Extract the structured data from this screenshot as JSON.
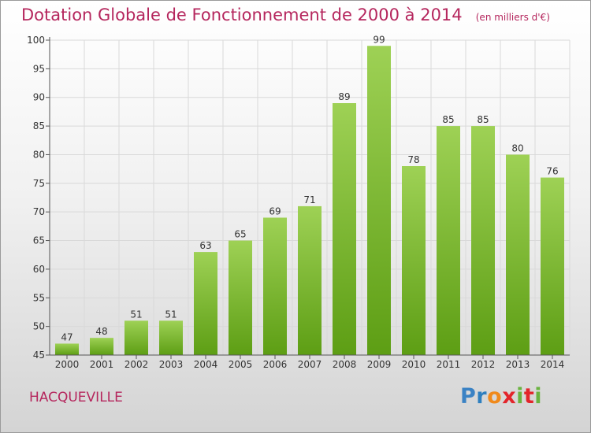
{
  "title": "Dotation Globale de Fonctionnement de 2000 à 2014",
  "subtitle": "(en milliers d'€)",
  "commune": "HACQUEVILLE",
  "logo": {
    "letters": [
      "P",
      "r",
      "o",
      "x",
      "i",
      "t",
      "i"
    ],
    "colors": [
      "#3a82c4",
      "#2e7fbf",
      "#f08a1c",
      "#e3252b",
      "#6ab33f",
      "#e3252b",
      "#6ab33f"
    ]
  },
  "colors": {
    "title": "#b5265d",
    "bar_top": "#9ed155",
    "bar_bottom": "#5d9e14",
    "grid": "#d9d9d9"
  },
  "chart_data": {
    "type": "bar",
    "title": "Dotation Globale de Fonctionnement de 2000 à 2014",
    "subtitle": "(en milliers d'€)",
    "categories": [
      "2000",
      "2001",
      "2002",
      "2003",
      "2004",
      "2005",
      "2006",
      "2007",
      "2008",
      "2009",
      "2010",
      "2011",
      "2012",
      "2013",
      "2014"
    ],
    "values": [
      47,
      48,
      51,
      51,
      63,
      65,
      69,
      71,
      89,
      99,
      78,
      85,
      85,
      80,
      76
    ],
    "ylim": [
      45,
      100
    ],
    "yticks": [
      45,
      50,
      55,
      60,
      65,
      70,
      75,
      80,
      85,
      90,
      95,
      100
    ],
    "grid": true,
    "legend": "none"
  }
}
